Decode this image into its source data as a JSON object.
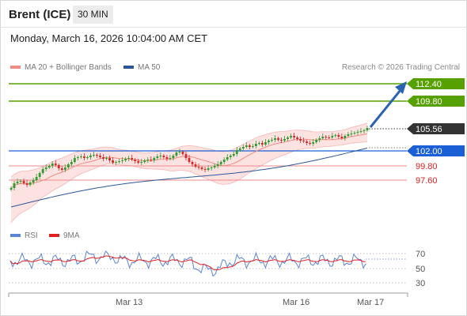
{
  "header": {
    "title": "Brent (ICE)",
    "timeframe": "30 MIN"
  },
  "timestamp": "Monday, March 16, 2026 10:04:00 AM CET",
  "legend": {
    "ma20": {
      "label": "MA 20 + Bollinger Bands",
      "color": "#f28b82"
    },
    "ma50": {
      "label": "MA 50",
      "color": "#2b5797"
    },
    "rsi": {
      "label": "RSI",
      "color": "#5b84d6"
    },
    "ma9": {
      "label": "9MA",
      "color": "#e02020"
    }
  },
  "copyright": "Research © 2026 Trading Central",
  "levels": [
    {
      "value": "112.40",
      "kind": "target",
      "color": "#56a000"
    },
    {
      "value": "109.80",
      "kind": "target",
      "color": "#56a000"
    },
    {
      "value": "105.56",
      "kind": "last",
      "color": "#333333"
    },
    {
      "value": "102.00",
      "kind": "pivot",
      "color": "#1a5fd6"
    },
    {
      "value": "99.80",
      "kind": "support",
      "color": "#e02020"
    },
    {
      "value": "97.60",
      "kind": "support",
      "color": "#e02020"
    }
  ],
  "rsi_scale": [
    "70",
    "50",
    "30"
  ],
  "x_axis": [
    "Mar 13",
    "Mar 16",
    "Mar 17"
  ],
  "colors": {
    "up": "#2e9c2e",
    "down": "#d42a2a",
    "arrow": "#2b63b0"
  }
}
